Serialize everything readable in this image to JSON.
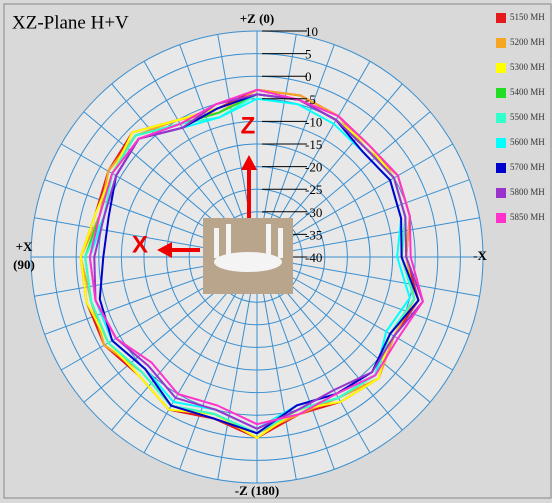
{
  "chart_data": {
    "type": "polar",
    "title": "XZ-Plane   H+V",
    "annotations": {
      "top": "+Z (0)",
      "bottom": "-Z (180)",
      "left": "+X",
      "left_sub": "(90)",
      "right": "-X",
      "z_arrow": "Z",
      "x_arrow": "X"
    },
    "rlim": [
      -40,
      10
    ],
    "rticks": [
      10,
      5,
      0,
      -5,
      -10,
      -15,
      -20,
      -25,
      -30,
      -35,
      -40
    ],
    "theta": [
      0,
      15,
      30,
      45,
      60,
      75,
      90,
      105,
      120,
      135,
      150,
      165,
      180,
      195,
      210,
      225,
      240,
      255,
      270,
      285,
      300,
      315,
      330,
      345
    ],
    "grid": true,
    "legend": "top-right",
    "series": [
      {
        "name": "5150 MH",
        "color": "#e41a1c",
        "values": [
          -3,
          -6,
          -5,
          -1,
          -2,
          -3,
          -1,
          -1,
          -1,
          -3,
          -1,
          -3,
          0,
          -4,
          -3,
          -2,
          -5,
          -3,
          -7,
          -5,
          -4,
          -5,
          -4,
          -3
        ]
      },
      {
        "name": "5200 MH",
        "color": "#f5a623",
        "values": [
          -3,
          -7,
          -5,
          -2,
          -2,
          -4,
          -1,
          -2,
          -1,
          -4,
          -2,
          -3,
          -1,
          -4,
          -4,
          -2,
          -5,
          -4,
          -7,
          -5,
          -4,
          -6,
          -4,
          -3
        ]
      },
      {
        "name": "5300 MH",
        "color": "#ffff00",
        "values": [
          -4,
          -6,
          -5,
          -1,
          -3,
          -3,
          -1,
          -1,
          -2,
          -3,
          -1,
          -4,
          0,
          -5,
          -3,
          -2,
          -6,
          -3,
          -8,
          -6,
          -5,
          -5,
          -5,
          -4
        ]
      },
      {
        "name": "5400 MH",
        "color": "#22dd22",
        "values": [
          -4,
          -7,
          -6,
          -2,
          -3,
          -4,
          -2,
          -2,
          -2,
          -4,
          -2,
          -4,
          -1,
          -5,
          -4,
          -3,
          -6,
          -4,
          -8,
          -6,
          -5,
          -6,
          -5,
          -4
        ]
      },
      {
        "name": "5500 MH",
        "color": "#33ffcc",
        "values": [
          -4,
          -8,
          -6,
          -2,
          -3,
          -5,
          -2,
          -2,
          -2,
          -4,
          -2,
          -4,
          -1,
          -5,
          -4,
          -3,
          -6,
          -4,
          -8,
          -6,
          -5,
          -6,
          -5,
          -4
        ]
      },
      {
        "name": "5600 MH",
        "color": "#00ffff",
        "values": [
          -5,
          -8,
          -7,
          -3,
          -4,
          -5,
          -3,
          -3,
          -3,
          -5,
          -3,
          -5,
          -2,
          -6,
          -5,
          -3,
          -7,
          -5,
          -9,
          -7,
          -6,
          -7,
          -6,
          -5
        ]
      },
      {
        "name": "5700 MH",
        "color": "#0000cc",
        "values": [
          -4,
          -6,
          -7,
          -3,
          -4,
          -6,
          -6,
          -4,
          -3,
          -5,
          -2,
          -3,
          -1,
          -6,
          -5,
          -4,
          -6,
          -3,
          -8,
          -7,
          -6,
          -7,
          -5,
          -4
        ]
      },
      {
        "name": "5800 MH",
        "color": "#9933cc",
        "values": [
          -4,
          -5,
          -7,
          -3,
          -4,
          -5,
          -4,
          -3,
          -4,
          -6,
          -4,
          -5,
          -2,
          -5,
          -6,
          -4,
          -5,
          -2,
          -7,
          -6,
          -5,
          -6,
          -5,
          -4
        ]
      },
      {
        "name": "5850 MH",
        "color": "#ff33cc",
        "values": [
          -3,
          -5,
          -6,
          -3,
          -3,
          -4,
          -3,
          -3,
          -4,
          -7,
          -5,
          -6,
          -3,
          -4,
          -5,
          -3,
          -4,
          -2,
          -6,
          -5,
          -4,
          -5,
          -4,
          -4
        ]
      }
    ]
  }
}
